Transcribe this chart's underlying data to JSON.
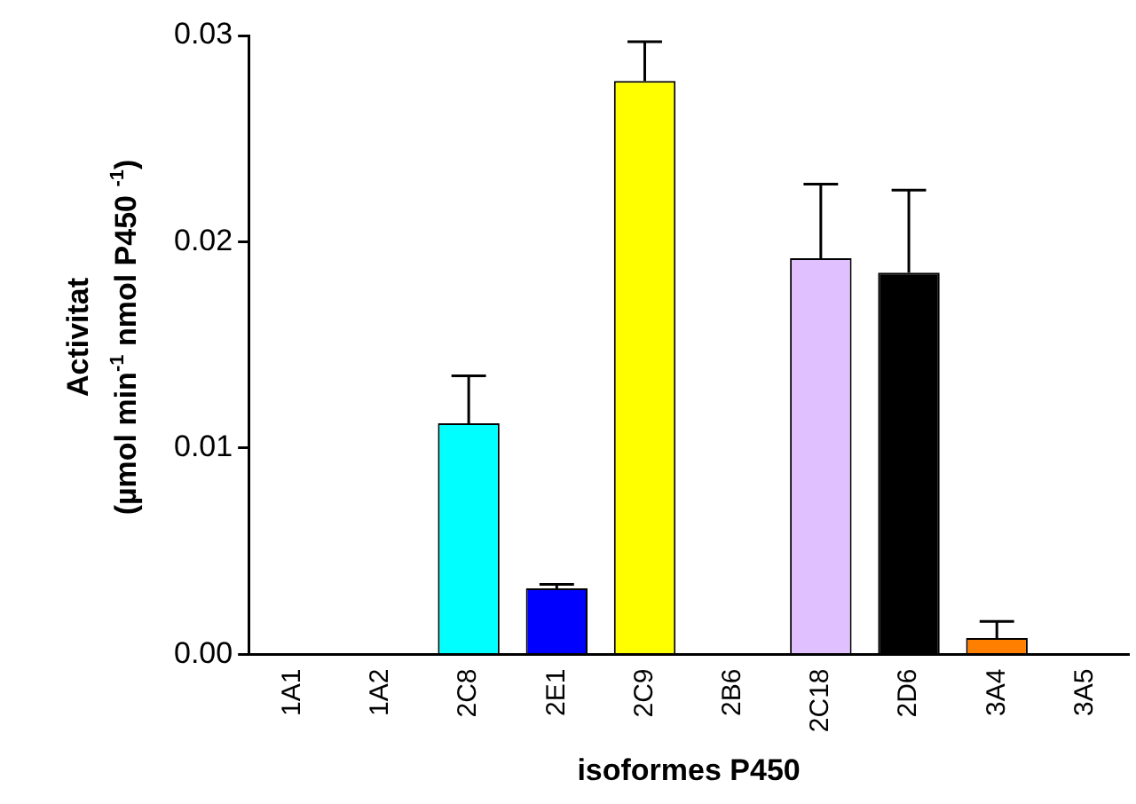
{
  "chart_data": {
    "type": "bar",
    "xlabel": "isoformes P450",
    "ylabel": "Activitat\n(µmol min$^{-1}$ nmol P450 $^{-1}$)",
    "categories": [
      "1A1",
      "1A2",
      "2C8",
      "2E1",
      "2C9",
      "2B6",
      "2C18",
      "2D6",
      "3A4",
      "3A5"
    ],
    "values": [
      0,
      0,
      0.0112,
      0.0032,
      0.0278,
      null,
      0.0192,
      0.0185,
      0.0008,
      0
    ],
    "errors": [
      null,
      null,
      [
        0.0112,
        0.0135
      ],
      [
        0.0032,
        0.0034
      ],
      [
        0.0278,
        0.0297
      ],
      null,
      [
        0.0192,
        0.0228
      ],
      [
        0.0185,
        0.0225
      ],
      [
        0.0008,
        0.0016
      ],
      null
    ],
    "colors": [
      "#ffffff",
      "#ffffff",
      "#00ffff",
      "#0000ff",
      "#ffff00",
      "#ffffff",
      "#e0c0ff",
      "#000000",
      "#ff8000",
      "#ffffff"
    ],
    "ylim": [
      0,
      0.03
    ],
    "yticks": [
      {
        "value": 0,
        "label": "0.00"
      },
      {
        "value": 0.01,
        "label": "0.01"
      },
      {
        "value": 0.02,
        "label": "0.02"
      },
      {
        "value": 0.03,
        "label": "0.03"
      }
    ],
    "grid": false,
    "legend": false
  }
}
